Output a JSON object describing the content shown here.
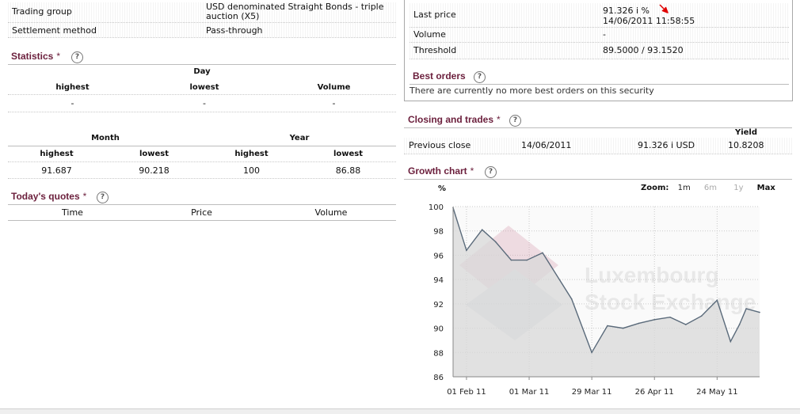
{
  "info": {
    "trading_group_label": "Trading group",
    "trading_group_value_line1": "USD denominated Straight Bonds - triple",
    "trading_group_value_line2": "auction (X5)",
    "settlement_label": "Settlement method",
    "settlement_value": "Pass-through"
  },
  "statistics": {
    "title": "Statistics",
    "star": "*",
    "help": "?",
    "day_header": "Day",
    "day_cols": [
      "highest",
      "lowest",
      "Volume"
    ],
    "day_vals": [
      "-",
      "-",
      "-"
    ],
    "month_header": "Month",
    "year_header": "Year",
    "my_cols": [
      "highest",
      "lowest",
      "highest",
      "lowest"
    ],
    "my_vals": [
      "91.687",
      "90.218",
      "100",
      "86.88"
    ]
  },
  "quotes": {
    "title": "Today's quotes",
    "star": "*",
    "help": "?",
    "cols": [
      "Time",
      "Price",
      "Volume"
    ]
  },
  "price_box": {
    "last_price_label": "Last price",
    "last_price_value": "91.326 i  %",
    "last_price_time": "14/06/2011 11:58:55",
    "volume_label": "Volume",
    "volume_value": "-",
    "threshold_label": "Threshold",
    "threshold_value": "89.5000 / 93.1520",
    "arrow_icon": "down-arrow-icon",
    "arrow_color": "#e00000"
  },
  "best_orders": {
    "title": "Best orders",
    "help": "?",
    "message": "There are currently no more best orders on this security"
  },
  "closing": {
    "title": "Closing and trades",
    "star": "*",
    "help": "?",
    "yield_header": "Yield",
    "label": "Previous close",
    "date": "14/06/2011",
    "price": "91.326 i USD",
    "yield": "10.8208"
  },
  "growth": {
    "title": "Growth chart",
    "star": "*",
    "help": "?",
    "zoom_label": "Zoom:",
    "zoom_options": [
      "1m",
      "6m",
      "1y",
      "Max"
    ],
    "zoom_selected": "Max",
    "watermark_line1": "Luxembourg",
    "watermark_line2": "Stock Exchange"
  },
  "chart_data": {
    "type": "area",
    "ylabel": "%",
    "ylim": [
      86,
      100
    ],
    "yticks": [
      86,
      88,
      90,
      92,
      94,
      96,
      98,
      100
    ],
    "xlim": [
      0,
      137
    ],
    "xticks": [
      {
        "x": 6,
        "label": "01 Feb 11"
      },
      {
        "x": 34,
        "label": "01 Mar 11"
      },
      {
        "x": 62,
        "label": "29 Mar 11"
      },
      {
        "x": 90,
        "label": "26 Apr 11"
      },
      {
        "x": 118,
        "label": "24 May 11"
      }
    ],
    "grid": true,
    "series": [
      {
        "values": [
          [
            0,
            99.9
          ],
          [
            6,
            96.4
          ],
          [
            13,
            98.1
          ],
          [
            19,
            97.1
          ],
          [
            26,
            95.6
          ],
          [
            33,
            95.6
          ],
          [
            40,
            96.2
          ],
          [
            53,
            92.4
          ],
          [
            62,
            88.0
          ],
          [
            69,
            90.2
          ],
          [
            76,
            90.0
          ],
          [
            83,
            90.4
          ],
          [
            90,
            90.7
          ],
          [
            97,
            90.9
          ],
          [
            104,
            90.3
          ],
          [
            111,
            91.0
          ],
          [
            118,
            92.3
          ],
          [
            124,
            88.9
          ],
          [
            128,
            90.3
          ],
          [
            131,
            91.6
          ],
          [
            137,
            91.3
          ]
        ]
      }
    ],
    "line_color": "#5a6a7a",
    "fill_color": "#d8d8d8"
  }
}
